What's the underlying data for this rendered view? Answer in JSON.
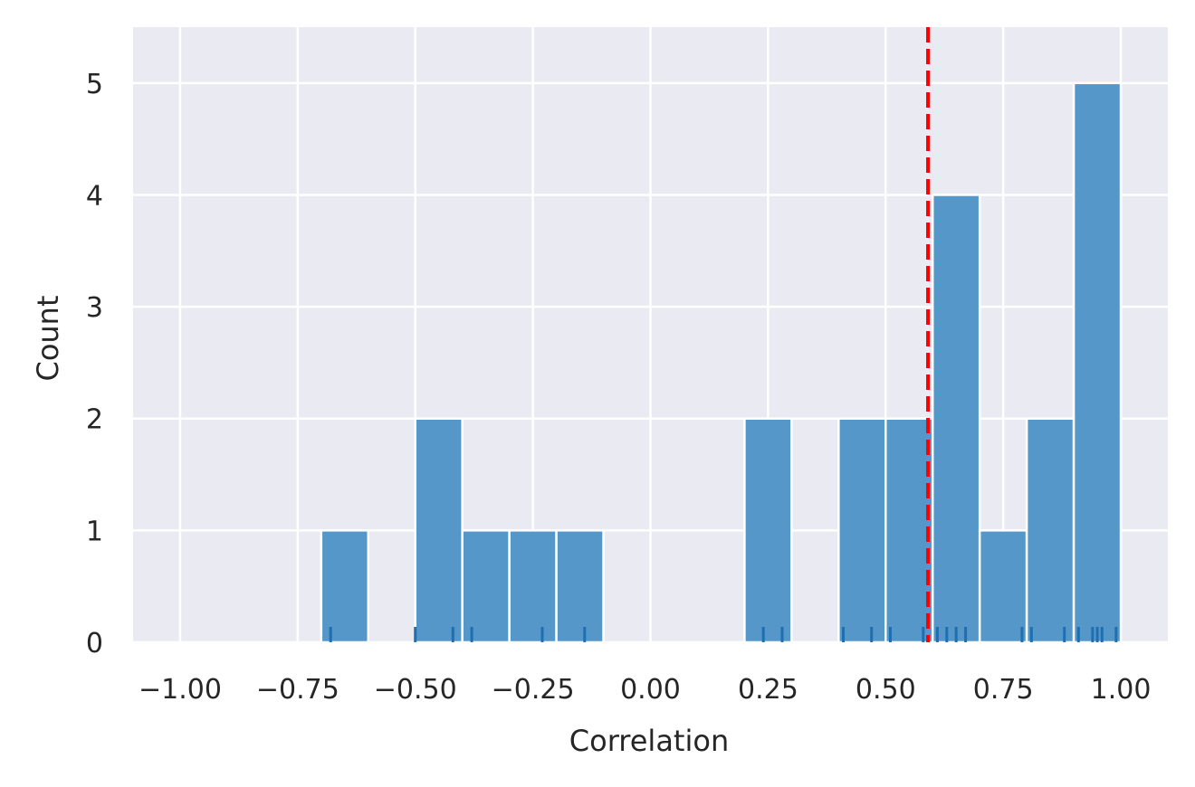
{
  "chart_data": {
    "type": "bar",
    "title": "",
    "xlabel": "Correlation",
    "ylabel": "Count",
    "xlim": [
      -1.1,
      1.1
    ],
    "ylim": [
      0,
      5.5
    ],
    "grid": true,
    "xticks": [
      -1.0,
      -0.75,
      -0.5,
      -0.25,
      0.0,
      0.25,
      0.5,
      0.75,
      1.0
    ],
    "xtick_labels": [
      "−1.00",
      "−0.75",
      "−0.50",
      "−0.25",
      "0.00",
      "0.25",
      "0.50",
      "0.75",
      "1.00"
    ],
    "yticks": [
      0,
      1,
      2,
      3,
      4,
      5
    ],
    "ytick_labels": [
      "0",
      "1",
      "2",
      "3",
      "4",
      "5"
    ],
    "bins": [
      {
        "start": -0.7,
        "end": -0.6,
        "count": 1
      },
      {
        "start": -0.5,
        "end": -0.4,
        "count": 2
      },
      {
        "start": -0.4,
        "end": -0.3,
        "count": 1
      },
      {
        "start": -0.3,
        "end": -0.2,
        "count": 1
      },
      {
        "start": -0.2,
        "end": -0.1,
        "count": 1
      },
      {
        "start": 0.2,
        "end": 0.3,
        "count": 2
      },
      {
        "start": 0.4,
        "end": 0.5,
        "count": 2
      },
      {
        "start": 0.5,
        "end": 0.6,
        "count": 2
      },
      {
        "start": 0.6,
        "end": 0.7,
        "count": 4
      },
      {
        "start": 0.7,
        "end": 0.8,
        "count": 1
      },
      {
        "start": 0.8,
        "end": 0.9,
        "count": 2
      },
      {
        "start": 0.9,
        "end": 1.0,
        "count": 5
      }
    ],
    "rug": [
      -0.68,
      -0.5,
      -0.42,
      -0.38,
      -0.23,
      -0.14,
      0.24,
      0.28,
      0.41,
      0.47,
      0.51,
      0.58,
      0.61,
      0.63,
      0.65,
      0.67,
      0.79,
      0.81,
      0.88,
      0.91,
      0.94,
      0.95,
      0.96,
      0.99
    ],
    "reference_line": {
      "x": 0.59,
      "style": "dashed"
    },
    "colors": {
      "bar": "#5597c8",
      "rug": "#1f6fb0",
      "reference_line": "#ff0000",
      "plot_background": "#eaeaf2",
      "grid": "#ffffff"
    }
  }
}
